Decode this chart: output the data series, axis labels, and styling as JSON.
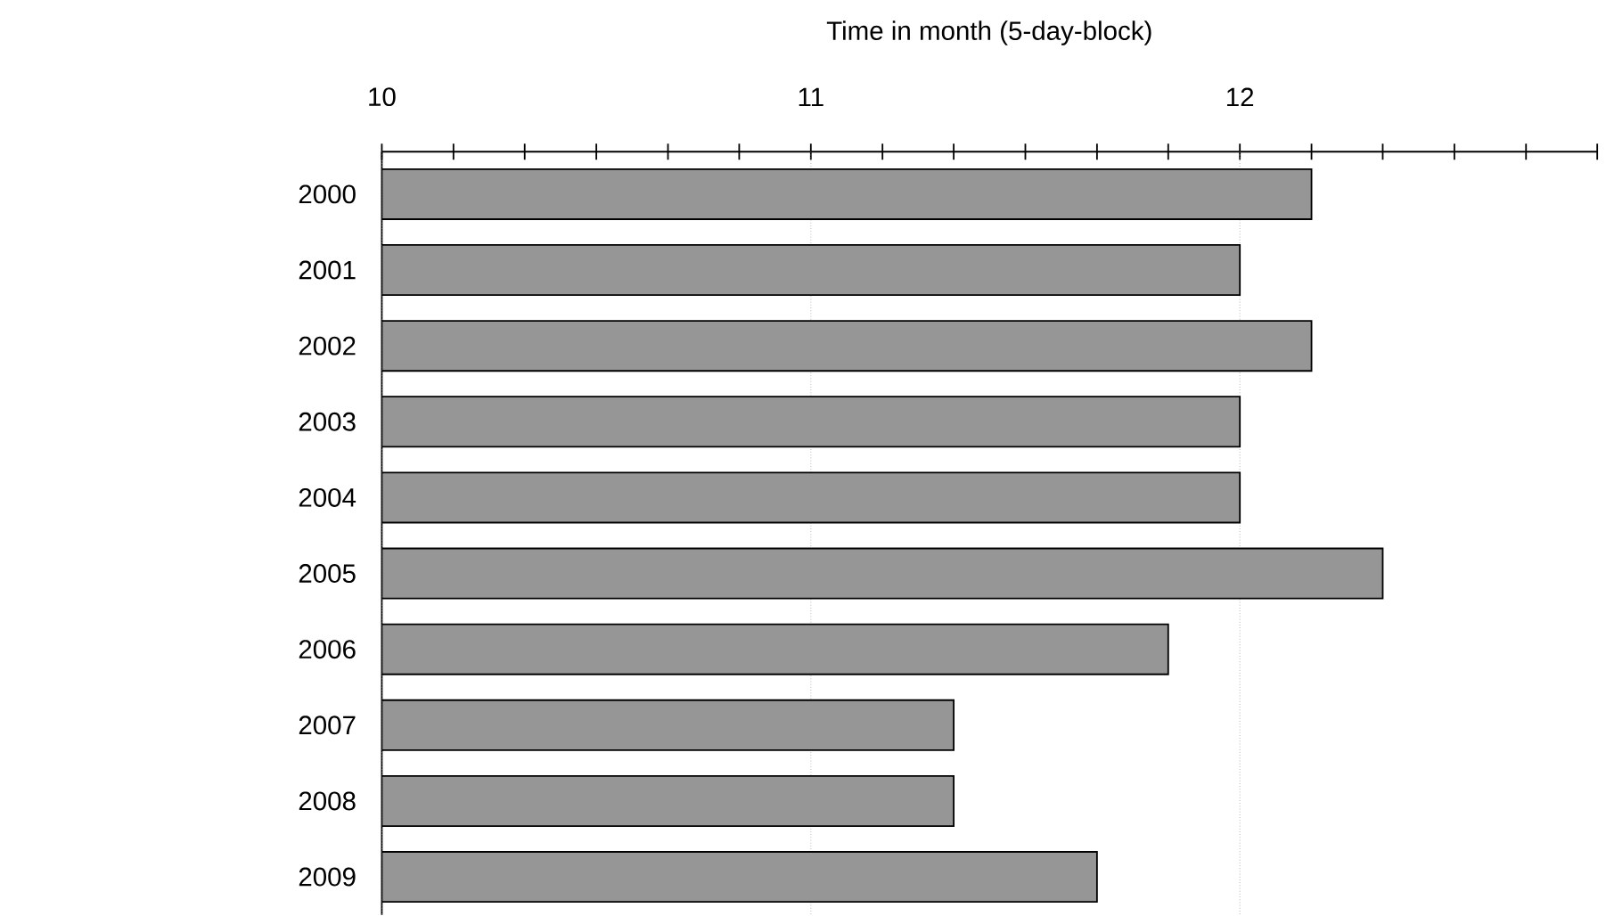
{
  "chart_data": {
    "type": "bar",
    "orientation": "horizontal",
    "xlabel": "Time in month (5-day-block)",
    "categories": [
      "2000",
      "2001",
      "2002",
      "2003",
      "2004",
      "2005",
      "2006",
      "2007",
      "2008",
      "2009"
    ],
    "values": [
      12.167,
      12,
      12.167,
      12,
      12,
      12.333,
      11.833,
      11.333,
      11.333,
      11.667
    ],
    "color": "#969696",
    "grid": "x",
    "xlim": [
      10,
      12.833
    ],
    "xticks": [
      10,
      {
        "value": 10.167,
        "label": null
      },
      {
        "value": 10.333,
        "label": null
      },
      {
        "value": 10.5,
        "label": null
      },
      {
        "value": 10.667,
        "label": null
      },
      {
        "value": 10.833,
        "label": null
      },
      11,
      {
        "value": 11.167,
        "label": null
      },
      {
        "value": 11.333,
        "label": null
      },
      {
        "value": 11.5,
        "label": null
      },
      {
        "value": 11.667,
        "label": null
      },
      {
        "value": 11.833,
        "label": null
      },
      12,
      {
        "value": 12.167,
        "label": null
      },
      {
        "value": 12.333,
        "label": null
      },
      {
        "value": 12.5,
        "label": null
      },
      {
        "value": 12.667,
        "label": null
      },
      {
        "value": 12.833,
        "label": null
      }
    ]
  }
}
